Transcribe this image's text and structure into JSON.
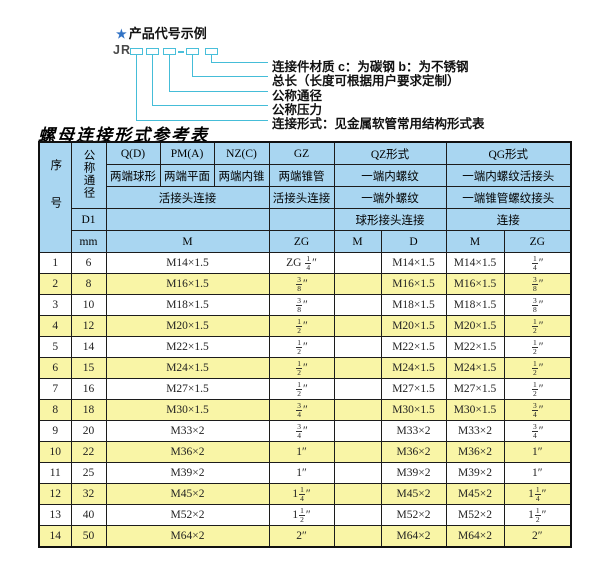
{
  "colors": {
    "header_blue": "#a9d6f1",
    "row_yellow": "#f9f5a6",
    "row_white": "#ffffff",
    "connector_cyan": "#45bdd8",
    "star_blue": "#3273c5",
    "border_black": "#1c1c1c"
  },
  "diagram": {
    "star": "★",
    "heading": "产品代号示例",
    "prefix": "JR",
    "dash": "-",
    "labels": [
      "连接件材质  c：为碳钢  b：为不锈钢",
      "总长（长度可根据用户要求定制）",
      "公称通径",
      "公称压力",
      "连接形式：见金属软管常用结构形式表"
    ]
  },
  "table": {
    "title": "螺母连接形式参考表",
    "header": {
      "xh": "序号",
      "gctj": "公称通径",
      "d1": "D1",
      "mm": "mm",
      "q_d": "Q(D)",
      "pm_a": "PM(A)",
      "nz_c": "NZ(C)",
      "gz": "GZ",
      "qz": "QZ形式",
      "qg": "QG形式",
      "q_d2": "两端球形",
      "pm_a2": "两端平面",
      "nz_c2": "两端内锥",
      "gz2": "两端锥管",
      "qz2": "一端内螺纹",
      "qg2": "一端内螺纹活接头",
      "left3": "活接头连接",
      "gz3": "活接头连接",
      "qz3": "一端外螺纹",
      "qg3": "一端锥管螺纹接头",
      "qz4": "球形接头连接",
      "qg4": "连接",
      "m": "M",
      "zg": "ZG",
      "qz_m": "M",
      "qz_d": "D",
      "qg_m": "M",
      "qg_zg": "ZG"
    },
    "columns": [
      "no",
      "dn",
      "m",
      "gz-zg",
      "qz-m",
      "qz-d",
      "qg-m",
      "qg-zg"
    ],
    "rows": [
      [
        "1",
        "6",
        "M14×1.5",
        "ZG {1/4}″",
        "",
        "M14×1.5",
        "M14×1.5",
        "{1/4}″"
      ],
      [
        "2",
        "8",
        "M16×1.5",
        "{3/8}″",
        "",
        "M16×1.5",
        "M16×1.5",
        "{3/8}″"
      ],
      [
        "3",
        "10",
        "M18×1.5",
        "{3/8}″",
        "",
        "M18×1.5",
        "M18×1.5",
        "{3/8}″"
      ],
      [
        "4",
        "12",
        "M20×1.5",
        "{1/2}″",
        "",
        "M20×1.5",
        "M20×1.5",
        "{1/2}″"
      ],
      [
        "5",
        "14",
        "M22×1.5",
        "{1/2}″",
        "",
        "M22×1.5",
        "M22×1.5",
        "{1/2}″"
      ],
      [
        "6",
        "15",
        "M24×1.5",
        "{1/2}″",
        "",
        "M24×1.5",
        "M24×1.5",
        "{1/2}″"
      ],
      [
        "7",
        "16",
        "M27×1.5",
        "{1/2}″",
        "",
        "M27×1.5",
        "M27×1.5",
        "{1/2}″"
      ],
      [
        "8",
        "18",
        "M30×1.5",
        "{3/4}″",
        "",
        "M30×1.5",
        "M30×1.5",
        "{3/4}″"
      ],
      [
        "9",
        "20",
        "M33×2",
        "{3/4}″",
        "",
        "M33×2",
        "M33×2",
        "{3/4}″"
      ],
      [
        "10",
        "22",
        "M36×2",
        "1″",
        "",
        "M36×2",
        "M36×2",
        "1″"
      ],
      [
        "11",
        "25",
        "M39×2",
        "1″",
        "",
        "M39×2",
        "M39×2",
        "1″"
      ],
      [
        "12",
        "32",
        "M45×2",
        "1{1/4}″",
        "",
        "M45×2",
        "M45×2",
        "1{1/4}″"
      ],
      [
        "13",
        "40",
        "M52×2",
        "1{1/2}″",
        "",
        "M52×2",
        "M52×2",
        "1{1/2}″"
      ],
      [
        "14",
        "50",
        "M64×2",
        "2″",
        "",
        "M64×2",
        "M64×2",
        "2″"
      ]
    ]
  }
}
